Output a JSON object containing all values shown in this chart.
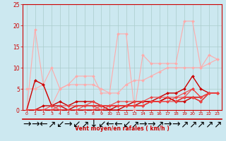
{
  "title": "",
  "xlabel": "Vent moyen/en rafales ( km/h )",
  "xlim": [
    -0.5,
    23.5
  ],
  "ylim": [
    0,
    25
  ],
  "yticks": [
    0,
    5,
    10,
    15,
    20,
    25
  ],
  "xticks": [
    0,
    1,
    2,
    3,
    4,
    5,
    6,
    7,
    8,
    9,
    10,
    11,
    12,
    13,
    14,
    15,
    16,
    17,
    18,
    19,
    20,
    21,
    22,
    23
  ],
  "bg_color": "#cce8f0",
  "grid_color": "#aacccc",
  "lines": [
    {
      "x": [
        0,
        1,
        2,
        3,
        4,
        5,
        6,
        7,
        8,
        9,
        10,
        11,
        12,
        13,
        14,
        15,
        16,
        17,
        18,
        19,
        20,
        21,
        22,
        23
      ],
      "y": [
        0,
        19,
        6,
        1,
        5,
        6,
        8,
        8,
        8,
        4,
        4,
        18,
        18,
        0,
        13,
        11,
        11,
        11,
        11,
        21,
        21,
        10,
        13,
        12
      ],
      "color": "#ffaaaa",
      "lw": 0.8,
      "marker": "D",
      "ms": 2.0
    },
    {
      "x": [
        0,
        1,
        2,
        3,
        4,
        5,
        6,
        7,
        8,
        9,
        10,
        11,
        12,
        13,
        14,
        15,
        16,
        17,
        18,
        19,
        20,
        21,
        22,
        23
      ],
      "y": [
        5,
        5,
        6,
        10,
        5,
        6,
        6,
        6,
        6,
        5,
        4,
        4,
        6,
        7,
        7,
        8,
        9,
        10,
        10,
        10,
        10,
        10,
        11,
        12
      ],
      "color": "#ffaaaa",
      "lw": 0.8,
      "marker": "D",
      "ms": 2.0
    },
    {
      "x": [
        0,
        1,
        2,
        3,
        4,
        5,
        6,
        7,
        8,
        9,
        10,
        11,
        12,
        13,
        14,
        15,
        16,
        17,
        18,
        19,
        20,
        21,
        22,
        23
      ],
      "y": [
        0,
        7,
        6,
        1,
        2,
        1,
        2,
        2,
        2,
        1,
        1,
        1,
        1,
        2,
        2,
        2,
        3,
        4,
        4,
        5,
        8,
        5,
        4,
        4
      ],
      "color": "#cc0000",
      "lw": 1.0,
      "marker": "D",
      "ms": 2.0
    },
    {
      "x": [
        0,
        1,
        2,
        3,
        4,
        5,
        6,
        7,
        8,
        9,
        10,
        11,
        12,
        13,
        14,
        15,
        16,
        17,
        18,
        19,
        20,
        21,
        22,
        23
      ],
      "y": [
        0,
        0,
        1,
        1,
        1,
        0,
        1,
        1,
        1,
        1,
        0,
        1,
        1,
        1,
        1,
        2,
        2,
        3,
        2,
        2,
        3,
        2,
        4,
        4
      ],
      "color": "#cc0000",
      "lw": 1.0,
      "marker": "D",
      "ms": 2.0
    },
    {
      "x": [
        0,
        1,
        2,
        3,
        4,
        5,
        6,
        7,
        8,
        9,
        10,
        11,
        12,
        13,
        14,
        15,
        16,
        17,
        18,
        19,
        20,
        21,
        22,
        23
      ],
      "y": [
        0,
        0,
        0,
        0,
        0,
        0,
        0,
        0,
        0,
        0,
        0,
        0,
        1,
        1,
        2,
        2,
        2,
        3,
        2,
        3,
        3,
        3,
        4,
        4
      ],
      "color": "#cc0000",
      "lw": 1.0,
      "marker": "D",
      "ms": 2.0
    },
    {
      "x": [
        0,
        1,
        2,
        3,
        4,
        5,
        6,
        7,
        8,
        9,
        10,
        11,
        12,
        13,
        14,
        15,
        16,
        17,
        18,
        19,
        20,
        21,
        22,
        23
      ],
      "y": [
        0,
        0,
        0,
        0,
        0,
        0,
        0,
        0,
        0,
        1,
        1,
        1,
        1,
        1,
        1,
        2,
        2,
        2,
        3,
        4,
        5,
        3,
        4,
        4
      ],
      "color": "#ee4444",
      "lw": 0.8,
      "marker": "D",
      "ms": 2.0
    },
    {
      "x": [
        0,
        1,
        2,
        3,
        4,
        5,
        6,
        7,
        8,
        9,
        10,
        11,
        12,
        13,
        14,
        15,
        16,
        17,
        18,
        19,
        20,
        21,
        22,
        23
      ],
      "y": [
        0,
        0,
        0,
        0,
        1,
        1,
        1,
        1,
        2,
        1,
        1,
        2,
        2,
        2,
        2,
        3,
        3,
        3,
        3,
        3,
        5,
        3,
        4,
        4
      ],
      "color": "#ee4444",
      "lw": 0.8,
      "marker": "D",
      "ms": 2.0
    },
    {
      "x": [
        0,
        1,
        2,
        3,
        4,
        5,
        6,
        7,
        8,
        9,
        10,
        11,
        12,
        13,
        14,
        15,
        16,
        17,
        18,
        19,
        20,
        21,
        22,
        23
      ],
      "y": [
        0,
        0,
        0,
        1,
        0,
        0,
        0,
        1,
        1,
        0,
        1,
        1,
        1,
        1,
        1,
        2,
        2,
        2,
        2,
        3,
        3,
        2,
        4,
        4
      ],
      "color": "#ee4444",
      "lw": 0.8,
      "marker": "D",
      "ms": 2.0
    }
  ],
  "arrow_symbols": [
    "→",
    "→",
    "←",
    "↗",
    "↙",
    "→",
    "↙",
    "↗",
    "↓",
    "↙",
    "←",
    "←",
    "↙",
    "↗",
    "→",
    "→",
    "↗",
    "→",
    "→",
    "↗",
    "↗",
    "↗",
    "↗",
    "↗"
  ]
}
